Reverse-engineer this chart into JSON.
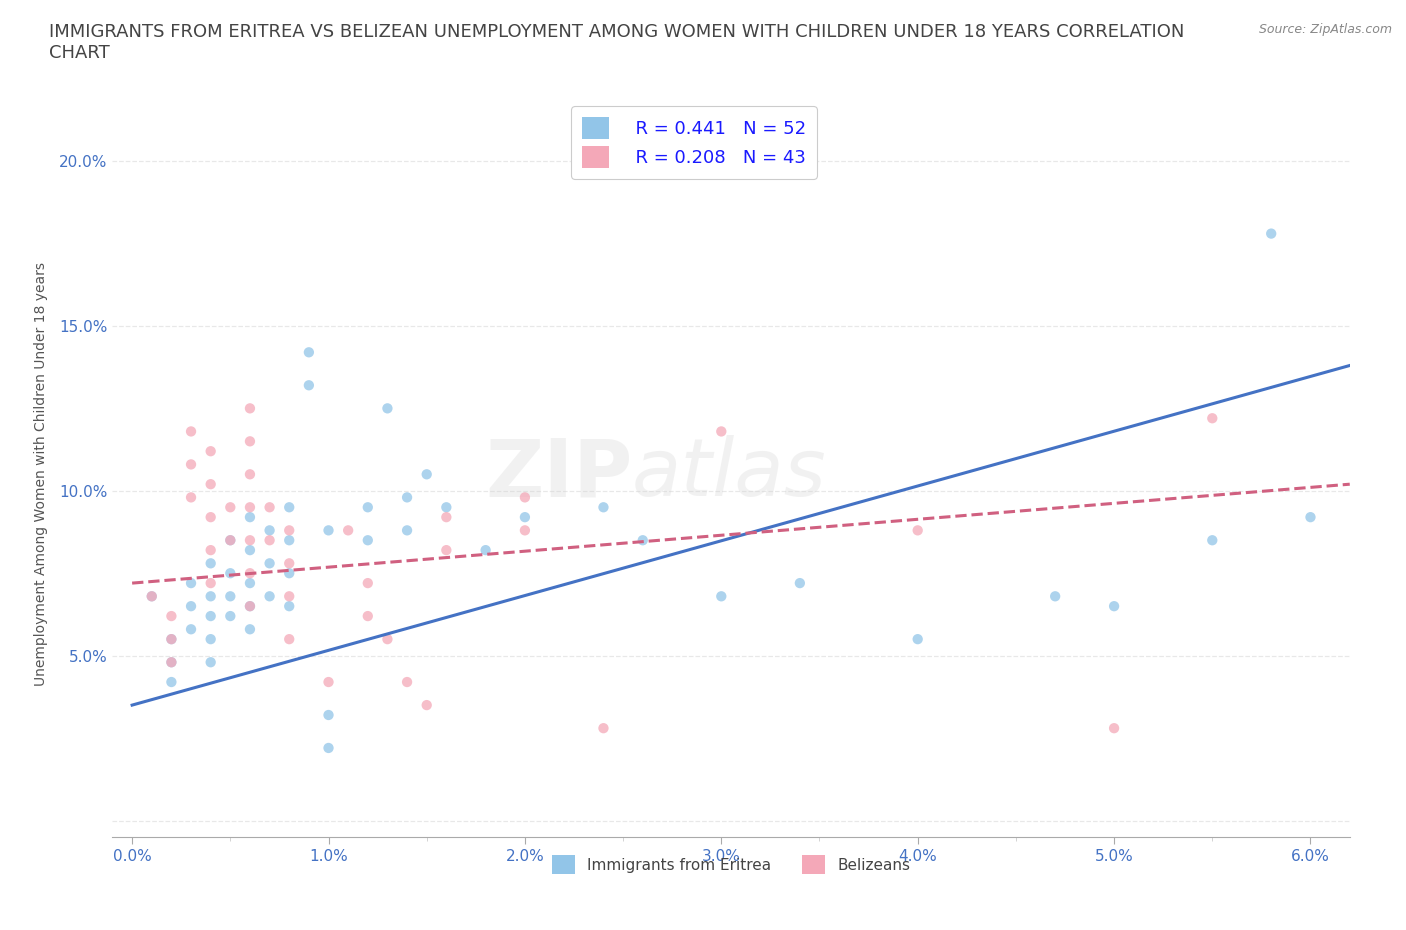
{
  "title_line1": "IMMIGRANTS FROM ERITREA VS BELIZEAN UNEMPLOYMENT AMONG WOMEN WITH CHILDREN UNDER 18 YEARS CORRELATION",
  "title_line2": "CHART",
  "source": "Source: ZipAtlas.com",
  "ylabel": "Unemployment Among Women with Children Under 18 years",
  "watermark": "ZIPatlas",
  "legend_label_blue": "Immigrants from Eritrea",
  "legend_label_pink": "Belizeans",
  "R_blue": 0.441,
  "N_blue": 52,
  "R_pink": 0.208,
  "N_pink": 43,
  "blue_scatter": [
    [
      0.001,
      0.068
    ],
    [
      0.002,
      0.055
    ],
    [
      0.002,
      0.048
    ],
    [
      0.002,
      0.042
    ],
    [
      0.003,
      0.072
    ],
    [
      0.003,
      0.065
    ],
    [
      0.003,
      0.058
    ],
    [
      0.004,
      0.078
    ],
    [
      0.004,
      0.068
    ],
    [
      0.004,
      0.062
    ],
    [
      0.004,
      0.055
    ],
    [
      0.004,
      0.048
    ],
    [
      0.005,
      0.085
    ],
    [
      0.005,
      0.075
    ],
    [
      0.005,
      0.068
    ],
    [
      0.005,
      0.062
    ],
    [
      0.006,
      0.092
    ],
    [
      0.006,
      0.082
    ],
    [
      0.006,
      0.072
    ],
    [
      0.006,
      0.065
    ],
    [
      0.006,
      0.058
    ],
    [
      0.007,
      0.088
    ],
    [
      0.007,
      0.078
    ],
    [
      0.007,
      0.068
    ],
    [
      0.008,
      0.095
    ],
    [
      0.008,
      0.085
    ],
    [
      0.008,
      0.075
    ],
    [
      0.008,
      0.065
    ],
    [
      0.009,
      0.142
    ],
    [
      0.009,
      0.132
    ],
    [
      0.01,
      0.088
    ],
    [
      0.01,
      0.032
    ],
    [
      0.01,
      0.022
    ],
    [
      0.012,
      0.095
    ],
    [
      0.012,
      0.085
    ],
    [
      0.013,
      0.125
    ],
    [
      0.014,
      0.098
    ],
    [
      0.014,
      0.088
    ],
    [
      0.015,
      0.105
    ],
    [
      0.016,
      0.095
    ],
    [
      0.018,
      0.082
    ],
    [
      0.02,
      0.092
    ],
    [
      0.024,
      0.095
    ],
    [
      0.026,
      0.085
    ],
    [
      0.03,
      0.068
    ],
    [
      0.034,
      0.072
    ],
    [
      0.04,
      0.055
    ],
    [
      0.05,
      0.065
    ],
    [
      0.055,
      0.085
    ],
    [
      0.047,
      0.068
    ],
    [
      0.058,
      0.178
    ],
    [
      0.06,
      0.092
    ]
  ],
  "pink_scatter": [
    [
      0.001,
      0.068
    ],
    [
      0.002,
      0.062
    ],
    [
      0.002,
      0.055
    ],
    [
      0.002,
      0.048
    ],
    [
      0.003,
      0.118
    ],
    [
      0.003,
      0.108
    ],
    [
      0.003,
      0.098
    ],
    [
      0.004,
      0.112
    ],
    [
      0.004,
      0.102
    ],
    [
      0.004,
      0.092
    ],
    [
      0.004,
      0.082
    ],
    [
      0.004,
      0.072
    ],
    [
      0.005,
      0.095
    ],
    [
      0.005,
      0.085
    ],
    [
      0.006,
      0.125
    ],
    [
      0.006,
      0.115
    ],
    [
      0.006,
      0.105
    ],
    [
      0.006,
      0.095
    ],
    [
      0.006,
      0.085
    ],
    [
      0.006,
      0.075
    ],
    [
      0.006,
      0.065
    ],
    [
      0.007,
      0.095
    ],
    [
      0.007,
      0.085
    ],
    [
      0.008,
      0.088
    ],
    [
      0.008,
      0.078
    ],
    [
      0.008,
      0.068
    ],
    [
      0.008,
      0.055
    ],
    [
      0.01,
      0.042
    ],
    [
      0.011,
      0.088
    ],
    [
      0.012,
      0.072
    ],
    [
      0.012,
      0.062
    ],
    [
      0.013,
      0.055
    ],
    [
      0.014,
      0.042
    ],
    [
      0.015,
      0.035
    ],
    [
      0.016,
      0.092
    ],
    [
      0.016,
      0.082
    ],
    [
      0.02,
      0.098
    ],
    [
      0.02,
      0.088
    ],
    [
      0.024,
      0.028
    ],
    [
      0.03,
      0.118
    ],
    [
      0.04,
      0.088
    ],
    [
      0.05,
      0.028
    ],
    [
      0.055,
      0.122
    ]
  ],
  "blue_line_x": [
    0.0,
    0.062
  ],
  "blue_line_y": [
    0.035,
    0.138
  ],
  "pink_line_x": [
    0.0,
    0.062
  ],
  "pink_line_y": [
    0.072,
    0.102
  ],
  "xlim": [
    -0.001,
    0.062
  ],
  "ylim": [
    -0.005,
    0.215
  ],
  "xticks": [
    0.0,
    0.01,
    0.02,
    0.03,
    0.04,
    0.05,
    0.06
  ],
  "xtick_minor": [
    0.005,
    0.015,
    0.025,
    0.035,
    0.045,
    0.055
  ],
  "yticks": [
    0.0,
    0.05,
    0.1,
    0.15,
    0.2
  ],
  "background_color": "#ffffff",
  "grid_color": "#e8e8e8",
  "blue_color": "#92c5e8",
  "pink_color": "#f4a8b8",
  "blue_line_color": "#4472c4",
  "pink_line_color": "#d06080",
  "scatter_alpha": 0.75,
  "scatter_size": 55,
  "title_fontsize": 13,
  "axis_label_fontsize": 10,
  "tick_fontsize": 11,
  "legend_fontsize": 13
}
